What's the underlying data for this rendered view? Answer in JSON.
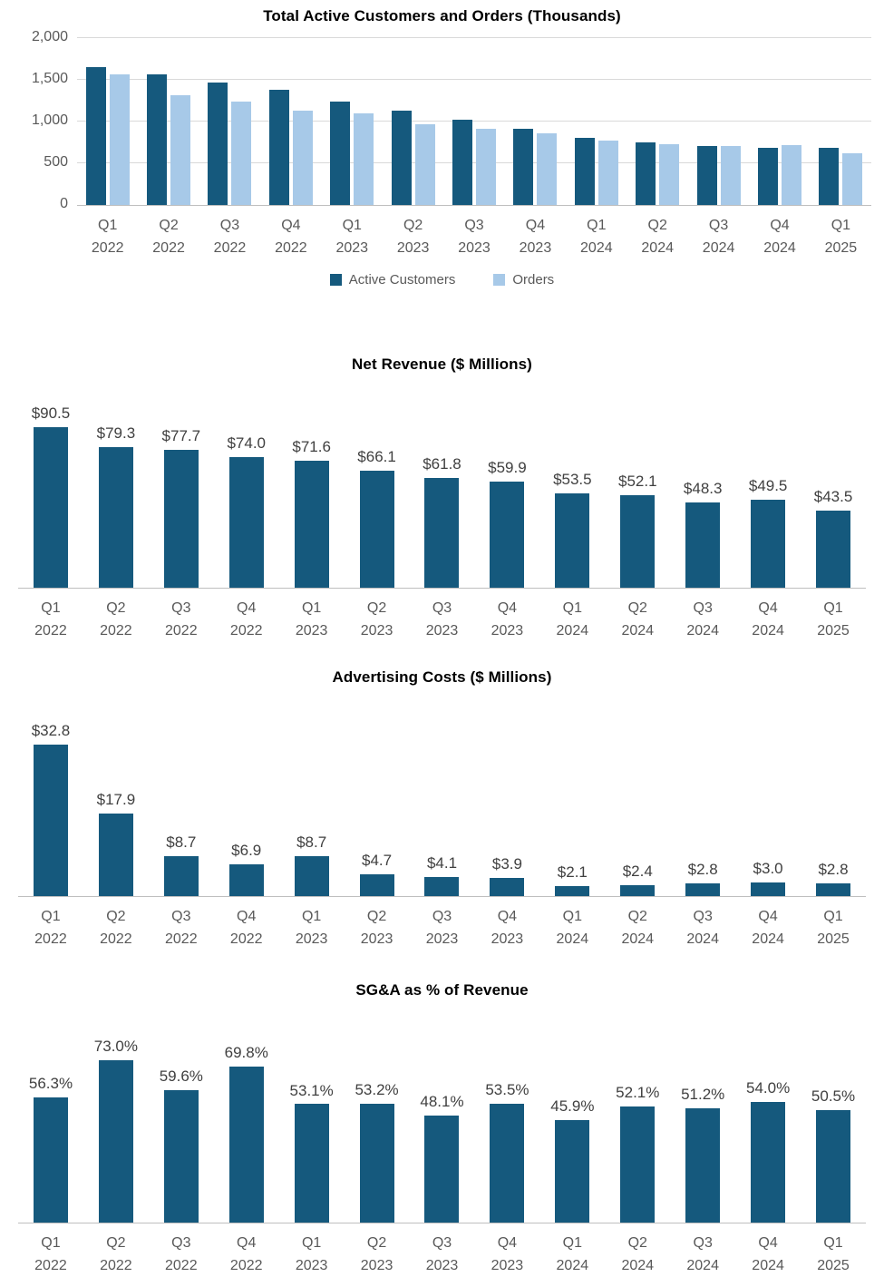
{
  "colors": {
    "primary_bar": "#15597d",
    "secondary_bar": "#a7c9e8",
    "gridline": "#d9d9d9",
    "axis_line": "#bfbfbf",
    "axis_text": "#595959",
    "data_label_text": "#404040",
    "title_text": "#000000"
  },
  "chart_data": [
    {
      "type": "bar",
      "title": "Total Active Customers and Orders (Thousands)",
      "categories": [
        "Q1 2022",
        "Q2 2022",
        "Q3 2022",
        "Q4 2022",
        "Q1 2023",
        "Q2 2023",
        "Q3 2023",
        "Q4 2023",
        "Q1 2024",
        "Q2 2024",
        "Q3 2024",
        "Q4 2024",
        "Q1 2025"
      ],
      "series": [
        {
          "name": "Active Customers",
          "color": "#15597d",
          "values": [
            1650,
            1560,
            1470,
            1380,
            1240,
            1130,
            1020,
            910,
            805,
            745,
            705,
            685,
            680
          ]
        },
        {
          "name": "Orders",
          "color": "#a7c9e8",
          "values": [
            1560,
            1320,
            1240,
            1130,
            1100,
            970,
            910,
            860,
            775,
            730,
            710,
            720,
            620
          ]
        }
      ],
      "ylim": [
        0,
        2000
      ],
      "yticks": [
        {
          "value": 0,
          "label": "0"
        },
        {
          "value": 500,
          "label": "500"
        },
        {
          "value": 1000,
          "label": "1,000"
        },
        {
          "value": 1500,
          "label": "1,500"
        },
        {
          "value": 2000,
          "label": "2,000"
        }
      ],
      "grid": true,
      "legend_position": "bottom",
      "data_labels": null
    },
    {
      "type": "bar",
      "title": "Net Revenue ($ Millions)",
      "categories": [
        "Q1 2022",
        "Q2 2022",
        "Q3 2022",
        "Q4 2022",
        "Q1 2023",
        "Q2 2023",
        "Q3 2023",
        "Q4 2023",
        "Q1 2024",
        "Q2 2024",
        "Q3 2024",
        "Q4 2024",
        "Q1 2025"
      ],
      "series": [
        {
          "name": "Net Revenue",
          "color": "#15597d",
          "values": [
            90.5,
            79.3,
            77.7,
            74.0,
            71.6,
            66.1,
            61.8,
            59.9,
            53.5,
            52.1,
            48.3,
            49.5,
            43.5
          ]
        }
      ],
      "ylim": [
        0,
        102
      ],
      "grid": false,
      "legend_position": "none",
      "data_labels": [
        "$90.5",
        "$79.3",
        "$77.7",
        "$74.0",
        "$71.6",
        "$66.1",
        "$61.8",
        "$59.9",
        "$53.5",
        "$52.1",
        "$48.3",
        "$49.5",
        "$43.5"
      ]
    },
    {
      "type": "bar",
      "title": "Advertising Costs ($ Millions)",
      "categories": [
        "Q1 2022",
        "Q2 2022",
        "Q3 2022",
        "Q4 2022",
        "Q1 2023",
        "Q2 2023",
        "Q3 2023",
        "Q4 2023",
        "Q1 2024",
        "Q2 2024",
        "Q3 2024",
        "Q4 2024",
        "Q1 2025"
      ],
      "series": [
        {
          "name": "Advertising Costs",
          "color": "#15597d",
          "values": [
            32.8,
            17.9,
            8.7,
            6.9,
            8.7,
            4.7,
            4.1,
            3.9,
            2.1,
            2.4,
            2.8,
            3.0,
            2.8
          ]
        }
      ],
      "ylim": [
        0,
        37.5
      ],
      "grid": false,
      "legend_position": "none",
      "data_labels": [
        "$32.8",
        "$17.9",
        "$8.7",
        "$6.9",
        "$8.7",
        "$4.7",
        "$4.1",
        "$3.9",
        "$2.1",
        "$2.4",
        "$2.8",
        "$3.0",
        "$2.8"
      ]
    },
    {
      "type": "bar",
      "title": "SG&A as % of Revenue",
      "categories": [
        "Q1 2022",
        "Q2 2022",
        "Q3 2022",
        "Q4 2022",
        "Q1 2023",
        "Q2 2023",
        "Q3 2023",
        "Q4 2023",
        "Q1 2024",
        "Q2 2024",
        "Q3 2024",
        "Q4 2024",
        "Q1 2025"
      ],
      "series": [
        {
          "name": "SG&A as % of Revenue",
          "color": "#15597d",
          "values": [
            56.3,
            73.0,
            59.6,
            69.8,
            53.1,
            53.2,
            48.1,
            53.5,
            45.9,
            52.1,
            51.2,
            54.0,
            50.5
          ]
        }
      ],
      "ylim": [
        0,
        83
      ],
      "grid": false,
      "legend_position": "none",
      "data_labels": [
        "56.3%",
        "73.0%",
        "59.6%",
        "69.8%",
        "53.1%",
        "53.2%",
        "48.1%",
        "53.5%",
        "45.9%",
        "52.1%",
        "51.2%",
        "54.0%",
        "50.5%"
      ]
    }
  ]
}
